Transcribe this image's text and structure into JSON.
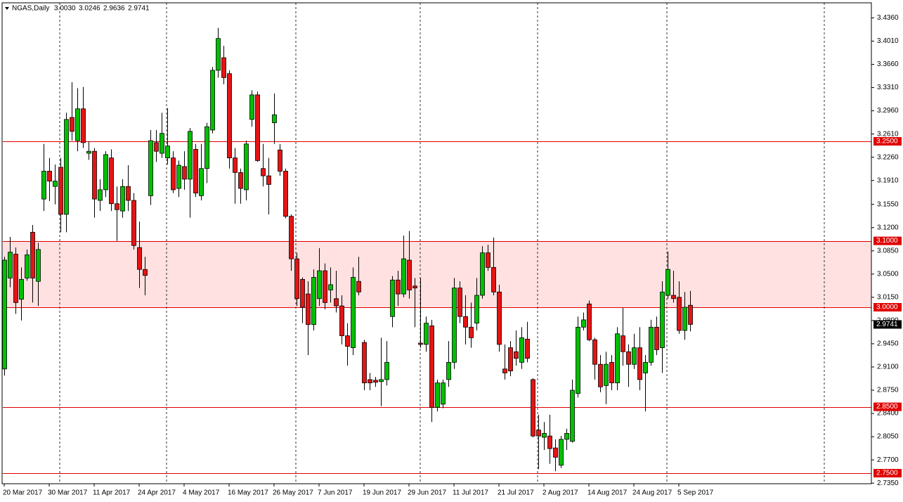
{
  "chart_data": {
    "type": "candlestick",
    "title": "NGAS,Daily",
    "ohlc_labels": [
      "3.0030",
      "3.0246",
      "2.9636",
      "2.9741"
    ],
    "categories": [
      "20 Mar 2017",
      null,
      null,
      null,
      null,
      null,
      null,
      null,
      "30 Mar 2017",
      null,
      null,
      null,
      null,
      null,
      null,
      null,
      "11 Apr 2017",
      null,
      null,
      null,
      null,
      null,
      null,
      null,
      "24 Apr 2017",
      null,
      null,
      null,
      null,
      null,
      null,
      null,
      "4 May 2017",
      null,
      null,
      null,
      null,
      null,
      null,
      null,
      "16 May 2017",
      null,
      null,
      null,
      null,
      null,
      null,
      null,
      "26 May 2017",
      null,
      null,
      null,
      null,
      null,
      null,
      null,
      "7 Jun 2017",
      null,
      null,
      null,
      null,
      null,
      null,
      null,
      "19 Jun 2017",
      null,
      null,
      null,
      null,
      null,
      null,
      null,
      "29 Jun 2017",
      null,
      null,
      null,
      null,
      null,
      null,
      null,
      "11 Jul 2017",
      null,
      null,
      null,
      null,
      null,
      null,
      null,
      "21 Jul 2017",
      null,
      null,
      null,
      null,
      null,
      null,
      null,
      "2 Aug 2017",
      null,
      null,
      null,
      null,
      null,
      null,
      null,
      "14 Aug 2017",
      null,
      null,
      null,
      null,
      null,
      null,
      null,
      "24 Aug 2017",
      null,
      null,
      null,
      null,
      null,
      null,
      null,
      "5 Sep 2017",
      null,
      null
    ],
    "open": [
      2.907,
      3.044,
      3.08,
      3.012,
      3.044,
      3.113,
      3.039,
      3.163,
      3.205,
      3.182,
      3.211,
      3.14,
      3.286,
      3.251,
      3.299,
      3.232,
      3.235,
      3.161,
      3.177,
      3.225,
      3.156,
      3.145,
      3.182,
      3.161,
      3.09,
      3.057,
      3.168,
      3.248,
      3.232,
      3.225,
      3.225,
      3.179,
      3.212,
      3.193,
      3.238,
      3.168,
      3.209,
      3.267,
      3.357,
      3.376,
      3.352,
      3.225,
      3.203,
      3.177,
      3.283,
      3.32,
      3.209,
      3.198,
      3.278,
      3.237,
      3.205,
      3.137,
      3.073,
      3.042,
      3.02,
      2.974,
      3.013,
      3.055,
      3.026,
      3.013,
      3.002,
      2.957,
      2.939,
      3.039,
      2.947,
      2.891,
      2.89,
      2.888,
      2.891,
      2.986,
      3.041,
      3.02,
      3.071,
      3.032,
      2.946,
      2.944,
      2.972,
      2.849,
      2.854,
      2.891,
      2.917,
      3.029,
      2.986,
      2.97,
      2.976,
      3.018,
      3.082,
      3.06,
      3.023,
      2.907,
      2.939,
      2.933,
      2.917,
      2.952,
      2.891,
      2.815,
      2.804,
      2.806,
      2.788,
      2.762,
      2.801,
      2.798,
      2.87,
      2.97,
      3.005,
      2.951,
      2.914,
      2.882,
      2.917,
      2.886,
      2.957,
      2.933,
      2.914,
      2.939,
      2.901,
      2.917,
      2.97,
      2.939,
      3.018,
      3.018,
      3.015,
      2.965,
      3.003
    ],
    "high": [
      3.076,
      3.106,
      3.09,
      3.06,
      3.087,
      3.124,
      3.097,
      3.246,
      3.225,
      3.215,
      3.225,
      3.293,
      3.339,
      3.33,
      3.332,
      3.25,
      3.24,
      3.193,
      3.235,
      3.238,
      3.182,
      3.193,
      3.214,
      3.172,
      3.129,
      3.076,
      3.267,
      3.267,
      3.293,
      3.3,
      3.235,
      3.221,
      3.235,
      3.27,
      3.246,
      3.246,
      3.278,
      3.362,
      3.421,
      3.394,
      3.357,
      3.24,
      3.209,
      3.251,
      3.327,
      3.325,
      3.246,
      3.225,
      3.322,
      3.246,
      3.209,
      3.14,
      3.082,
      3.045,
      3.039,
      3.057,
      3.089,
      3.066,
      3.06,
      3.055,
      3.018,
      2.976,
      3.06,
      3.076,
      2.951,
      2.901,
      2.895,
      2.954,
      2.949,
      3.047,
      3.055,
      3.108,
      3.115,
      3.044,
      3.044,
      2.986,
      2.981,
      2.891,
      2.891,
      2.949,
      3.044,
      3.039,
      3.018,
      3.007,
      3.044,
      3.092,
      3.094,
      3.105,
      3.034,
      2.944,
      2.949,
      2.965,
      2.97,
      2.978,
      2.893,
      2.838,
      2.827,
      2.838,
      2.801,
      2.806,
      2.817,
      2.891,
      2.986,
      2.992,
      3.01,
      2.954,
      2.928,
      2.933,
      2.928,
      2.97,
      2.999,
      2.944,
      2.96,
      2.97,
      2.928,
      2.981,
      2.986,
      3.039,
      3.084,
      3.055,
      3.039,
      3.023,
      3.0246
    ],
    "low": [
      2.897,
      3.03,
      2.99,
      2.98,
      3.04,
      3.007,
      3.002,
      3.145,
      3.16,
      3.155,
      3.113,
      3.113,
      3.251,
      3.235,
      3.24,
      3.222,
      3.135,
      3.145,
      3.166,
      3.145,
      3.1,
      3.135,
      3.145,
      3.087,
      3.029,
      3.018,
      3.154,
      3.219,
      3.225,
      3.215,
      3.172,
      3.166,
      3.177,
      3.135,
      3.166,
      3.161,
      3.187,
      3.262,
      3.346,
      3.336,
      3.209,
      3.156,
      3.156,
      3.161,
      3.272,
      3.219,
      3.182,
      3.14,
      3.246,
      3.198,
      3.134,
      3.055,
      3.002,
      2.976,
      2.928,
      2.965,
      3.002,
      2.997,
      3.007,
      2.992,
      2.944,
      2.912,
      2.928,
      3.018,
      2.875,
      2.875,
      2.88,
      2.851,
      2.882,
      2.97,
      3.002,
      3.015,
      3.013,
      2.97,
      2.939,
      2.933,
      2.827,
      2.843,
      2.848,
      2.88,
      2.907,
      2.976,
      2.944,
      2.939,
      2.965,
      3.013,
      3.055,
      3.018,
      2.933,
      2.891,
      2.896,
      2.912,
      2.907,
      2.917,
      2.804,
      2.756,
      2.785,
      2.764,
      2.753,
      2.758,
      2.785,
      2.796,
      2.864,
      2.965,
      2.949,
      2.891,
      2.872,
      2.854,
      2.875,
      2.875,
      2.912,
      2.88,
      2.907,
      2.875,
      2.843,
      2.912,
      2.928,
      2.901,
      3.013,
      3.007,
      2.96,
      2.951,
      2.9636
    ],
    "close": [
      3.071,
      3.083,
      3.007,
      3.042,
      3.079,
      3.044,
      3.087,
      3.205,
      3.19,
      3.19,
      3.14,
      3.283,
      3.265,
      3.299,
      3.248,
      3.235,
      3.163,
      3.177,
      3.23,
      3.156,
      3.147,
      3.182,
      3.161,
      3.093,
      3.057,
      3.048,
      3.251,
      3.235,
      3.262,
      3.243,
      3.177,
      3.214,
      3.193,
      3.265,
      3.172,
      3.209,
      3.272,
      3.357,
      3.405,
      3.346,
      3.225,
      3.203,
      3.179,
      3.246,
      3.32,
      3.221,
      3.198,
      3.185,
      3.29,
      3.205,
      3.137,
      3.073,
      3.013,
      3.0,
      2.974,
      3.045,
      3.055,
      3.007,
      3.034,
      3.002,
      2.957,
      2.941,
      3.045,
      3.023,
      2.886,
      2.886,
      2.887,
      2.891,
      2.917,
      3.041,
      3.02,
      3.073,
      3.026,
      3.029,
      2.944,
      2.976,
      2.849,
      2.886,
      2.886,
      2.917,
      3.029,
      2.986,
      2.97,
      2.954,
      3.018,
      3.082,
      3.06,
      3.023,
      2.944,
      2.901,
      2.904,
      2.923,
      2.954,
      2.923,
      2.806,
      2.806,
      2.81,
      2.787,
      2.774,
      2.801,
      2.81,
      2.875,
      2.97,
      2.981,
      2.951,
      2.914,
      2.88,
      2.914,
      2.886,
      2.96,
      2.933,
      2.914,
      2.939,
      2.891,
      2.917,
      2.97,
      2.936,
      3.023,
      3.057,
      3.013,
      2.965,
      3.0,
      2.9741
    ],
    "up_color": "#00c000",
    "down_color": "#e41414",
    "level_color": "#e00000",
    "zone_color": "#ffe1e1",
    "ylim": [
      2.7341,
      3.4587
    ],
    "yticks": [
      {
        "value": 3.436,
        "label": "3.4360"
      },
      {
        "value": 3.401,
        "label": "3.4010"
      },
      {
        "value": 3.366,
        "label": "3.3660"
      },
      {
        "value": 3.331,
        "label": "3.3310"
      },
      {
        "value": 3.296,
        "label": "3.2960"
      },
      {
        "value": 3.261,
        "label": "3.2610"
      },
      {
        "value": 3.226,
        "label": "3.2260"
      },
      {
        "value": 3.191,
        "label": "3.1910"
      },
      {
        "value": 3.155,
        "label": "3.1550"
      },
      {
        "value": 3.12,
        "label": "3.1200"
      },
      {
        "value": 3.085,
        "label": "3.0850"
      },
      {
        "value": 3.05,
        "label": "3.0500"
      },
      {
        "value": 3.015,
        "label": "3.0150"
      },
      {
        "value": 2.98,
        "label": "2.9800"
      },
      {
        "value": 2.945,
        "label": "2.9450"
      },
      {
        "value": 2.91,
        "label": "2.9100"
      },
      {
        "value": 2.875,
        "label": "2.8750"
      },
      {
        "value": 2.84,
        "label": "2.8400"
      },
      {
        "value": 2.805,
        "label": "2.8050"
      },
      {
        "value": 2.77,
        "label": "2.7700"
      },
      {
        "value": 2.735,
        "label": "2.7350"
      }
    ],
    "zone": [
      3.0,
      3.1
    ],
    "levels": [
      {
        "value": 3.25,
        "label": "3.2500"
      },
      {
        "value": 3.1,
        "label": "3.1000"
      },
      {
        "value": 3.0,
        "label": "3.0000"
      },
      {
        "value": 2.85,
        "label": "2.8500"
      },
      {
        "value": 2.75,
        "label": "2.7500"
      }
    ],
    "last_price": {
      "value": 2.9741,
      "label": "2.9741"
    }
  }
}
